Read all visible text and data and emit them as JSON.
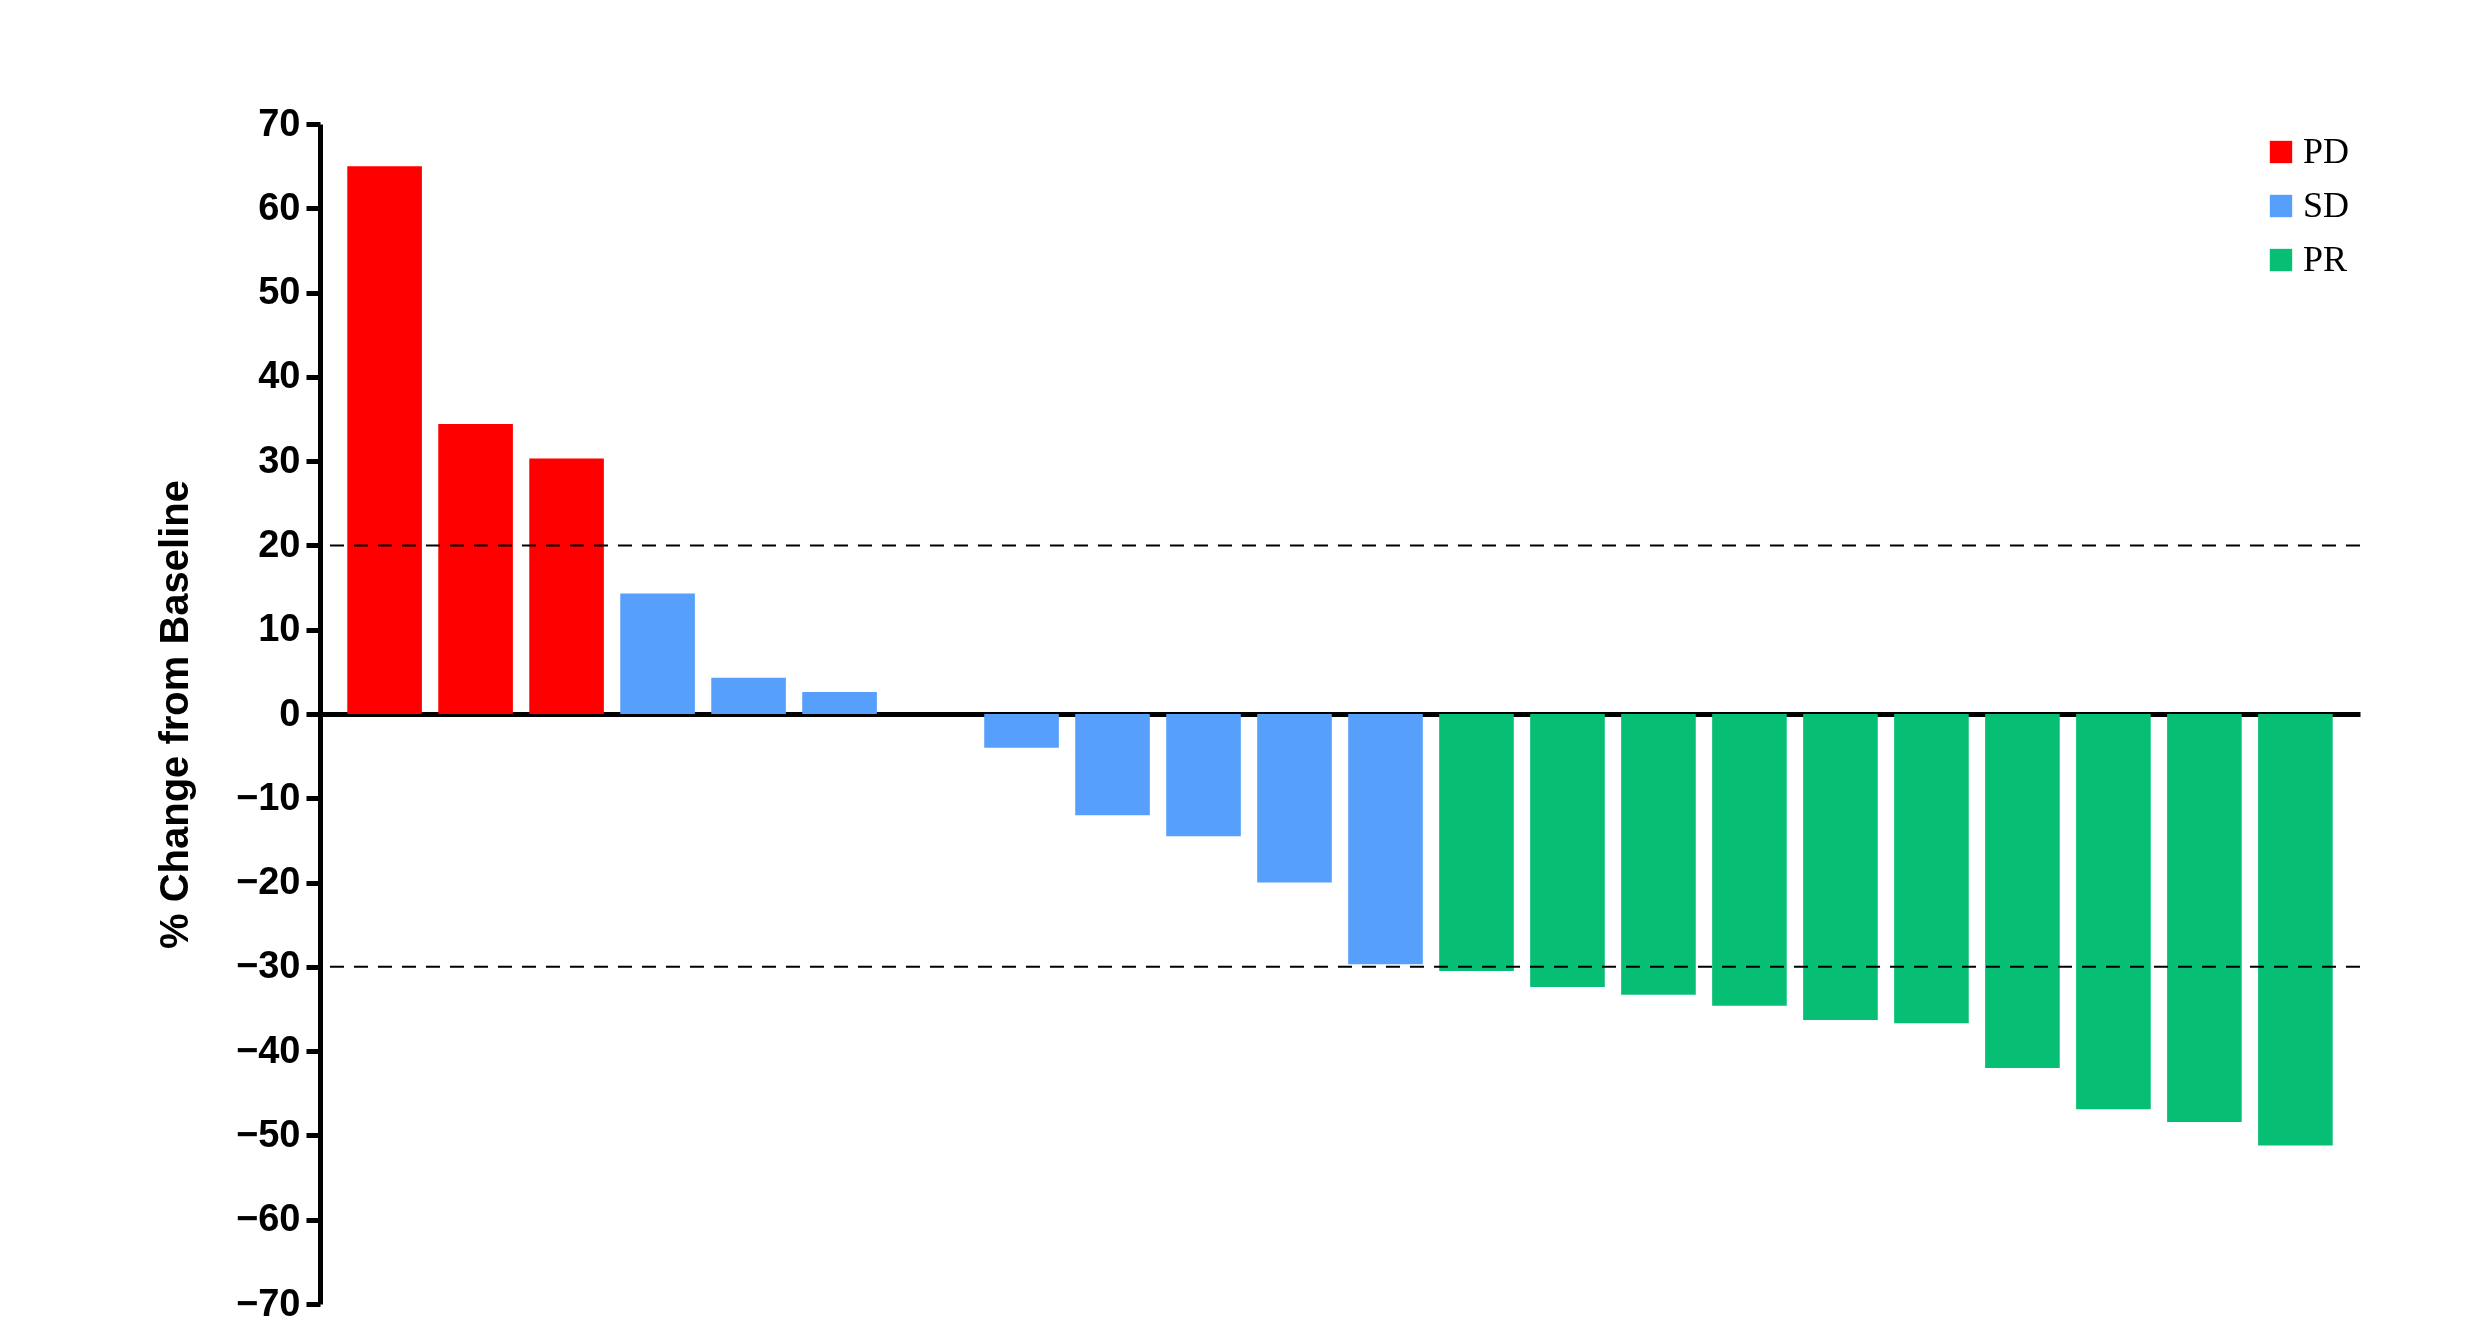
{
  "chart_data": {
    "type": "bar",
    "ylabel": "% Change from Baseline",
    "categories": [
      null,
      null,
      null,
      null,
      null,
      null,
      null,
      null,
      null,
      null,
      null,
      null,
      null,
      null,
      null,
      null,
      null,
      null,
      null,
      null,
      null,
      null
    ],
    "series": [
      {
        "name": "PD",
        "color": "#ff0000",
        "values": [
          65,
          34.4,
          30.3,
          null,
          null,
          null,
          null,
          null,
          null,
          null,
          null,
          null,
          null,
          null,
          null,
          null,
          null,
          null,
          null,
          null,
          null,
          null
        ]
      },
      {
        "name": "SD",
        "color": "#56a0fb",
        "values": [
          null,
          null,
          null,
          14.3,
          4.3,
          2.6,
          0,
          -4,
          -12,
          -14.5,
          -20,
          -29.7,
          null,
          null,
          null,
          null,
          null,
          null,
          null,
          null,
          null,
          null
        ]
      },
      {
        "name": "PR",
        "color": "#07bf74",
        "values": [
          null,
          null,
          null,
          null,
          null,
          null,
          null,
          null,
          null,
          null,
          null,
          null,
          -30.5,
          -32.4,
          -33.3,
          -34.6,
          -36.3,
          -36.7,
          -42,
          -46.9,
          -48.4,
          -51.2
        ]
      }
    ],
    "ylim": [
      -70,
      70
    ],
    "yticks": [
      -70,
      -60,
      -50,
      -40,
      -30,
      -20,
      -10,
      0,
      10,
      20,
      30,
      40,
      50,
      60,
      70
    ],
    "ref_lines": [
      {
        "axis": "y",
        "value": 20,
        "line_style": "dashed"
      },
      {
        "axis": "y",
        "value": -30,
        "line_style": "dashed"
      }
    ],
    "legend": "top right",
    "grid": false
  }
}
